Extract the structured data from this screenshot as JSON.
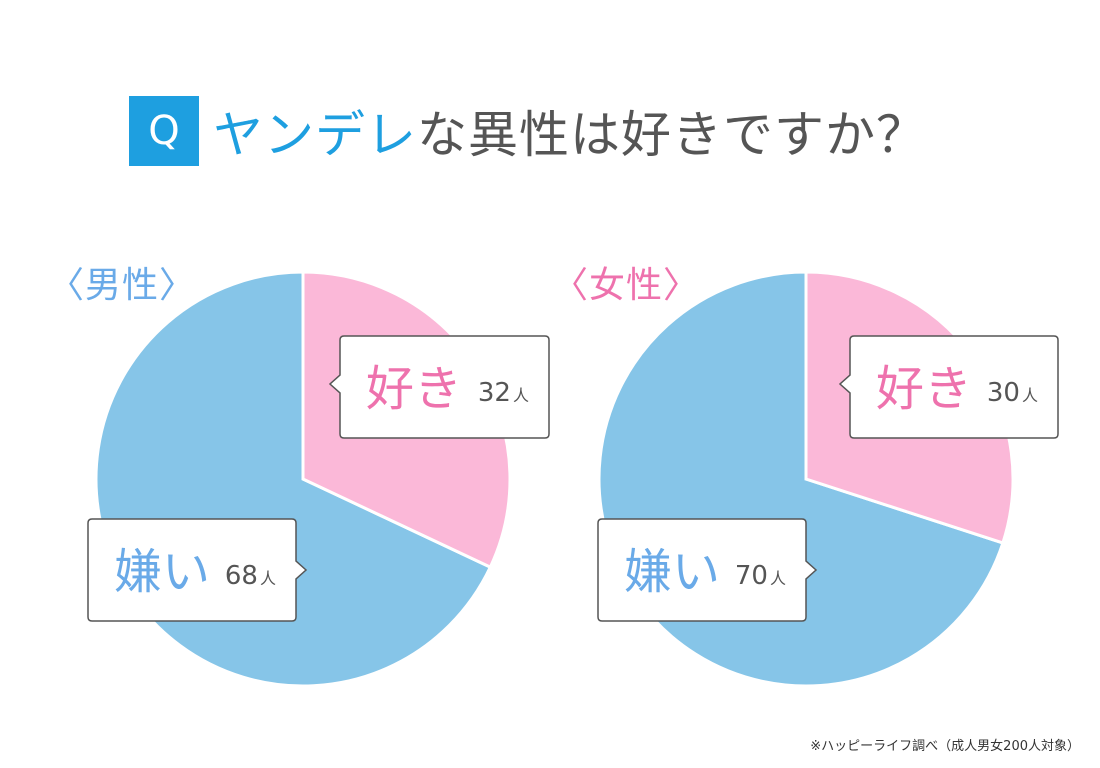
{
  "title": {
    "badge": "Q",
    "accent": "ヤンデレ",
    "rest": "な異性は好きですか？"
  },
  "footnote": "※ハッピーライフ調べ（成人男女200人対象）",
  "colors": {
    "like": "#fbb8d8",
    "dislike": "#86c5e8",
    "like_text": "#ee72ad",
    "dislike_text": "#6aaae8",
    "accent": "#1e9fe0"
  },
  "chart_data": [
    {
      "type": "pie",
      "group": "〈男性〉",
      "slices": [
        {
          "label": "好き",
          "value": 32,
          "unit": "人"
        },
        {
          "label": "嫌い",
          "value": 68,
          "unit": "人"
        }
      ]
    },
    {
      "type": "pie",
      "group": "〈女性〉",
      "slices": [
        {
          "label": "好き",
          "value": 30,
          "unit": "人"
        },
        {
          "label": "嫌い",
          "value": 70,
          "unit": "人"
        }
      ]
    }
  ]
}
